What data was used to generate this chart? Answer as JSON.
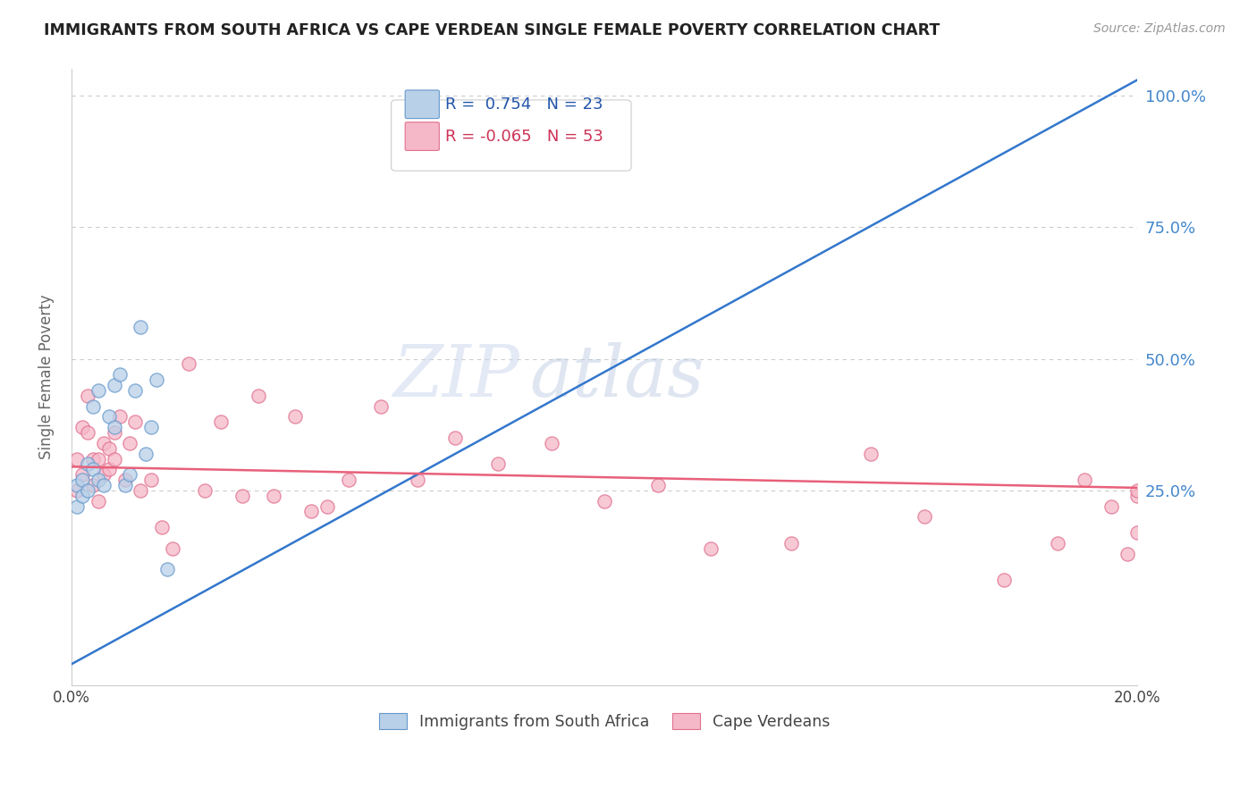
{
  "title": "IMMIGRANTS FROM SOUTH AFRICA VS CAPE VERDEAN SINGLE FEMALE POVERTY CORRELATION CHART",
  "source": "Source: ZipAtlas.com",
  "ylabel": "Single Female Poverty",
  "blue_r": "0.754",
  "blue_n": "23",
  "pink_r": "-0.065",
  "pink_n": "53",
  "blue_color": "#b8d0e8",
  "pink_color": "#f5b8c8",
  "blue_edge_color": "#6699cc",
  "pink_edge_color": "#e07090",
  "blue_line_color": "#3377cc",
  "pink_line_color": "#e8607a",
  "legend_label_blue": "Immigrants from South Africa",
  "legend_label_pink": "Cape Verdeans",
  "watermark_zip": "ZIP",
  "watermark_atlas": "atlas",
  "xmin": 0.0,
  "xmax": 0.2,
  "ymin": -0.12,
  "ymax": 1.05,
  "blue_line_x0": 0.0,
  "blue_line_y0": -0.08,
  "blue_line_x1": 0.2,
  "blue_line_y1": 1.03,
  "pink_line_x0": 0.0,
  "pink_line_y0": 0.295,
  "pink_line_x1": 0.2,
  "pink_line_y1": 0.255,
  "blue_scatter_x": [
    0.001,
    0.001,
    0.002,
    0.002,
    0.003,
    0.003,
    0.004,
    0.004,
    0.005,
    0.005,
    0.006,
    0.007,
    0.008,
    0.008,
    0.009,
    0.01,
    0.011,
    0.012,
    0.013,
    0.014,
    0.015,
    0.016,
    0.018
  ],
  "blue_scatter_y": [
    0.22,
    0.26,
    0.24,
    0.27,
    0.25,
    0.3,
    0.29,
    0.41,
    0.27,
    0.44,
    0.26,
    0.39,
    0.37,
    0.45,
    0.47,
    0.26,
    0.28,
    0.44,
    0.56,
    0.32,
    0.37,
    0.46,
    0.1
  ],
  "pink_scatter_x": [
    0.001,
    0.001,
    0.002,
    0.002,
    0.003,
    0.003,
    0.004,
    0.004,
    0.005,
    0.005,
    0.006,
    0.006,
    0.007,
    0.007,
    0.008,
    0.008,
    0.009,
    0.01,
    0.011,
    0.012,
    0.013,
    0.015,
    0.017,
    0.019,
    0.022,
    0.025,
    0.028,
    0.032,
    0.035,
    0.038,
    0.042,
    0.045,
    0.048,
    0.052,
    0.058,
    0.065,
    0.072,
    0.08,
    0.09,
    0.1,
    0.11,
    0.12,
    0.135,
    0.15,
    0.16,
    0.175,
    0.185,
    0.19,
    0.195,
    0.198,
    0.2,
    0.2,
    0.2
  ],
  "pink_scatter_y": [
    0.25,
    0.31,
    0.28,
    0.37,
    0.36,
    0.43,
    0.26,
    0.31,
    0.31,
    0.23,
    0.28,
    0.34,
    0.29,
    0.33,
    0.31,
    0.36,
    0.39,
    0.27,
    0.34,
    0.38,
    0.25,
    0.27,
    0.18,
    0.14,
    0.49,
    0.25,
    0.38,
    0.24,
    0.43,
    0.24,
    0.39,
    0.21,
    0.22,
    0.27,
    0.41,
    0.27,
    0.35,
    0.3,
    0.34,
    0.23,
    0.26,
    0.14,
    0.15,
    0.32,
    0.2,
    0.08,
    0.15,
    0.27,
    0.22,
    0.13,
    0.17,
    0.24,
    0.25
  ]
}
